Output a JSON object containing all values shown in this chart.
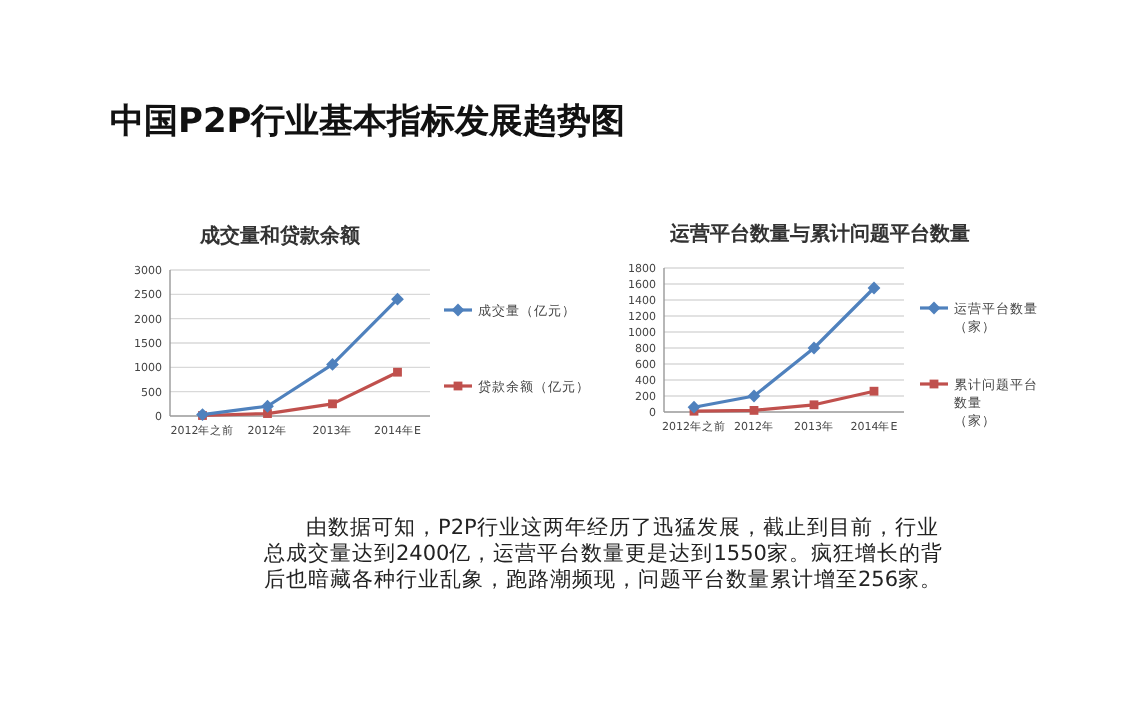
{
  "chart_data": [
    {
      "type": "other",
      "title": "中国P2P行业基本指标发展趋势图",
      "annotations": [
        "由数据可知，P2P行业这两年经历了迅猛发展，截止到目前，行业总成交量达到2400亿，运营平台数量更是达到1550家。疯狂增长的背后也暗藏各种行业乱象，跑路潮频现，问题平台数量累计增至256家。"
      ]
    },
    {
      "type": "line",
      "title": "成交量和贷款余额",
      "categories": [
        "2012年之前",
        "2012年",
        "2013年",
        "2014年E"
      ],
      "ylim": [
        0,
        3000
      ],
      "yticks": [
        0,
        500,
        1000,
        1500,
        2000,
        2500,
        3000
      ],
      "grid": "y",
      "legend": "right",
      "series": [
        {
          "name": "成交量（亿元）",
          "color": "#4f81bd",
          "marker": "diamond",
          "values": [
            30,
            200,
            1060,
            2400
          ]
        },
        {
          "name": "贷款余额（亿元）",
          "color": "#c0504d",
          "marker": "square",
          "values": [
            10,
            50,
            250,
            900
          ]
        }
      ]
    },
    {
      "type": "line",
      "title": "运营平台数量与累计问题平台数量",
      "categories": [
        "2012年之前",
        "2012年",
        "2013年",
        "2014年E"
      ],
      "ylim": [
        0,
        1800
      ],
      "yticks": [
        0,
        200,
        400,
        600,
        800,
        1000,
        1200,
        1400,
        1600,
        1800
      ],
      "grid": "y",
      "legend": "right",
      "series": [
        {
          "name": "运营平台数量（家）",
          "color": "#4f81bd",
          "marker": "diamond",
          "values": [
            60,
            200,
            800,
            1550
          ]
        },
        {
          "name": "累计问题平台数量（家）",
          "color": "#c0504d",
          "marker": "square",
          "values": [
            10,
            20,
            90,
            260
          ]
        }
      ]
    }
  ]
}
